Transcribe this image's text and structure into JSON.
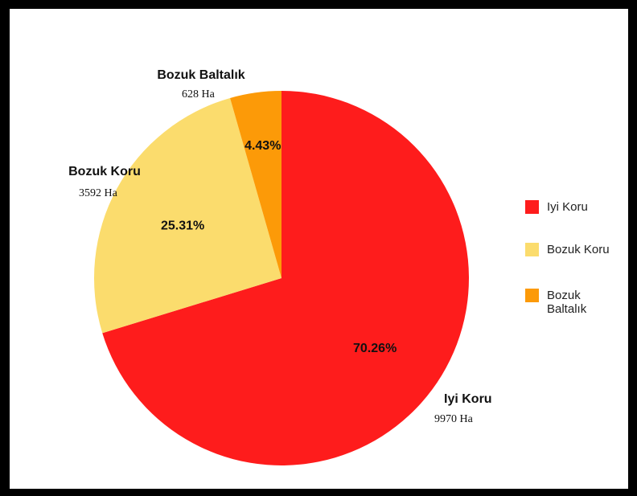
{
  "chart_data": {
    "type": "pie",
    "title": "",
    "slices": [
      {
        "name": "Iyi Koru",
        "value": 9970,
        "value_label": "9970 Ha",
        "percent_label": "70.26%",
        "color": "#fe1c1c"
      },
      {
        "name": "Bozuk Koru",
        "value": 3592,
        "value_label": "3592 Ha",
        "percent_label": "25.31%",
        "color": "#fbdc6d"
      },
      {
        "name": "Bozuk Baltalık",
        "value": 628,
        "value_label": "628 Ha",
        "percent_label": "4.43%",
        "color": "#fc9a08"
      }
    ],
    "legend": {
      "position": "right",
      "entries": [
        "Iyi Koru",
        "Bozuk Koru",
        "Bozuk Baltalık"
      ]
    }
  }
}
